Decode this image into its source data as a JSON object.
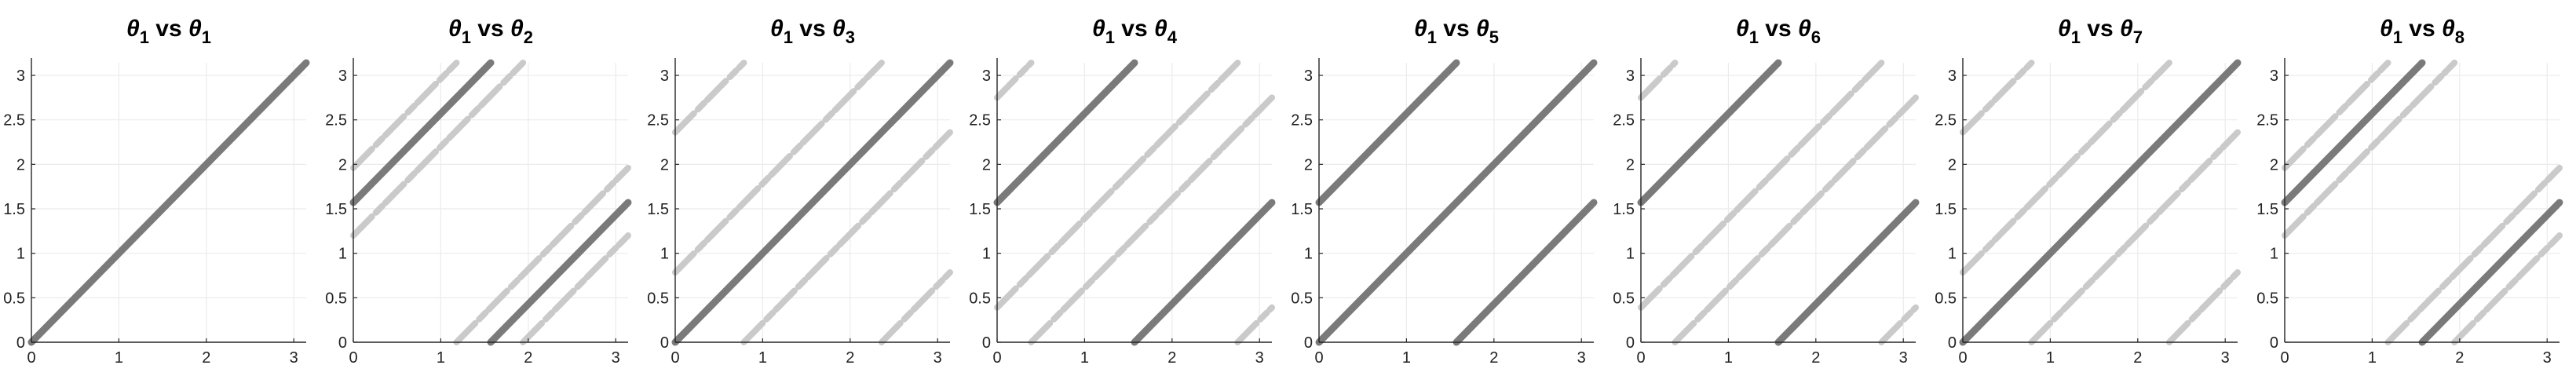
{
  "colors": {
    "strong": "#7a7a7a",
    "faint": "#c8c8c8",
    "axis": "#262626",
    "grid": "#ebebeb"
  },
  "chart_data": [
    {
      "type": "scatter",
      "title": {
        "base": "θ",
        "sub1": "1",
        "mid": " vs ",
        "sub2": "1"
      },
      "xlim": [
        0,
        3.1416
      ],
      "ylim": [
        0,
        3.1416
      ],
      "grid": true,
      "xticks": [
        "0",
        "1",
        "2",
        "3"
      ],
      "yticks": [
        "0",
        "0.5",
        "1",
        "1.5",
        "2",
        "2.5",
        "3"
      ],
      "series": [
        {
          "strength": "strong",
          "lines": [
            {
              "start": [
                0,
                0
              ],
              "end": [
                3.1416,
                3.1416
              ]
            }
          ]
        }
      ]
    },
    {
      "type": "scatter",
      "title": {
        "base": "θ",
        "sub1": "1",
        "mid": " vs ",
        "sub2": "2"
      },
      "xlim": [
        0,
        3.1416
      ],
      "ylim": [
        0,
        3.1416
      ],
      "grid": true,
      "xticks": [
        "0",
        "1",
        "2",
        "3"
      ],
      "yticks": [
        "0",
        "0.5",
        "1",
        "1.5",
        "2",
        "2.5",
        "3"
      ],
      "series": [
        {
          "strength": "strong",
          "lines": [
            {
              "start": [
                0,
                1.571
              ],
              "end": [
                1.571,
                3.1416
              ]
            },
            {
              "start": [
                1.571,
                0
              ],
              "end": [
                3.1416,
                1.571
              ]
            }
          ]
        },
        {
          "strength": "faint",
          "lines": [
            {
              "start": [
                0,
                1.96
              ],
              "end": [
                1.18,
                3.1416
              ]
            },
            {
              "start": [
                0,
                1.2
              ],
              "end": [
                1.94,
                3.1416
              ]
            },
            {
              "start": [
                1.18,
                0
              ],
              "end": [
                3.1416,
                1.96
              ]
            },
            {
              "start": [
                1.94,
                0
              ],
              "end": [
                3.1416,
                1.2
              ]
            }
          ]
        }
      ]
    },
    {
      "type": "scatter",
      "title": {
        "base": "θ",
        "sub1": "1",
        "mid": " vs ",
        "sub2": "3"
      },
      "xlim": [
        0,
        3.1416
      ],
      "ylim": [
        0,
        3.1416
      ],
      "grid": true,
      "xticks": [
        "0",
        "1",
        "2",
        "3"
      ],
      "yticks": [
        "0",
        "0.5",
        "1",
        "1.5",
        "2",
        "2.5",
        "3"
      ],
      "series": [
        {
          "strength": "strong",
          "lines": [
            {
              "start": [
                0,
                0
              ],
              "end": [
                3.1416,
                3.1416
              ]
            }
          ]
        },
        {
          "strength": "faint",
          "lines": [
            {
              "start": [
                0,
                2.36
              ],
              "end": [
                0.785,
                3.1416
              ]
            },
            {
              "start": [
                0,
                0.785
              ],
              "end": [
                2.36,
                3.1416
              ]
            },
            {
              "start": [
                0.785,
                0
              ],
              "end": [
                3.1416,
                2.36
              ]
            },
            {
              "start": [
                2.36,
                0
              ],
              "end": [
                3.1416,
                0.785
              ]
            }
          ]
        }
      ]
    },
    {
      "type": "scatter",
      "title": {
        "base": "θ",
        "sub1": "1",
        "mid": " vs ",
        "sub2": "4"
      },
      "xlim": [
        0,
        3.1416
      ],
      "ylim": [
        0,
        3.1416
      ],
      "grid": true,
      "xticks": [
        "0",
        "1",
        "2",
        "3"
      ],
      "yticks": [
        "0",
        "0.5",
        "1",
        "1.5",
        "2",
        "2.5",
        "3"
      ],
      "series": [
        {
          "strength": "strong",
          "lines": [
            {
              "start": [
                0,
                1.571
              ],
              "end": [
                1.571,
                3.1416
              ]
            },
            {
              "start": [
                1.571,
                0
              ],
              "end": [
                3.1416,
                1.571
              ]
            }
          ]
        },
        {
          "strength": "faint",
          "lines": [
            {
              "start": [
                0,
                2.75
              ],
              "end": [
                0.39,
                3.1416
              ]
            },
            {
              "start": [
                0,
                0.39
              ],
              "end": [
                2.75,
                3.1416
              ]
            },
            {
              "start": [
                0.39,
                0
              ],
              "end": [
                3.1416,
                2.75
              ]
            },
            {
              "start": [
                2.75,
                0
              ],
              "end": [
                3.1416,
                0.39
              ]
            }
          ]
        }
      ]
    },
    {
      "type": "scatter",
      "title": {
        "base": "θ",
        "sub1": "1",
        "mid": " vs ",
        "sub2": "5"
      },
      "xlim": [
        0,
        3.1416
      ],
      "ylim": [
        0,
        3.1416
      ],
      "grid": true,
      "xticks": [
        "0",
        "1",
        "2",
        "3"
      ],
      "yticks": [
        "0",
        "0.5",
        "1",
        "1.5",
        "2",
        "2.5",
        "3"
      ],
      "series": [
        {
          "strength": "strong",
          "lines": [
            {
              "start": [
                0,
                0
              ],
              "end": [
                3.1416,
                3.1416
              ]
            },
            {
              "start": [
                0,
                1.571
              ],
              "end": [
                1.571,
                3.1416
              ]
            },
            {
              "start": [
                1.571,
                0
              ],
              "end": [
                3.1416,
                1.571
              ]
            }
          ]
        }
      ]
    },
    {
      "type": "scatter",
      "title": {
        "base": "θ",
        "sub1": "1",
        "mid": " vs ",
        "sub2": "6"
      },
      "xlim": [
        0,
        3.1416
      ],
      "ylim": [
        0,
        3.1416
      ],
      "grid": true,
      "xticks": [
        "0",
        "1",
        "2",
        "3"
      ],
      "yticks": [
        "0",
        "0.5",
        "1",
        "1.5",
        "2",
        "2.5",
        "3"
      ],
      "series": [
        {
          "strength": "strong",
          "lines": [
            {
              "start": [
                0,
                1.571
              ],
              "end": [
                1.571,
                3.1416
              ]
            },
            {
              "start": [
                1.571,
                0
              ],
              "end": [
                3.1416,
                1.571
              ]
            }
          ]
        },
        {
          "strength": "faint",
          "lines": [
            {
              "start": [
                0,
                2.75
              ],
              "end": [
                0.39,
                3.1416
              ]
            },
            {
              "start": [
                0,
                0.39
              ],
              "end": [
                2.75,
                3.1416
              ]
            },
            {
              "start": [
                0.39,
                0
              ],
              "end": [
                3.1416,
                2.75
              ]
            },
            {
              "start": [
                2.75,
                0
              ],
              "end": [
                3.1416,
                0.39
              ]
            }
          ]
        }
      ]
    },
    {
      "type": "scatter",
      "title": {
        "base": "θ",
        "sub1": "1",
        "mid": " vs ",
        "sub2": "7"
      },
      "xlim": [
        0,
        3.1416
      ],
      "ylim": [
        0,
        3.1416
      ],
      "grid": true,
      "xticks": [
        "0",
        "1",
        "2",
        "3"
      ],
      "yticks": [
        "0",
        "0.5",
        "1",
        "1.5",
        "2",
        "2.5",
        "3"
      ],
      "series": [
        {
          "strength": "strong",
          "lines": [
            {
              "start": [
                0,
                0
              ],
              "end": [
                3.1416,
                3.1416
              ]
            }
          ]
        },
        {
          "strength": "faint",
          "lines": [
            {
              "start": [
                0,
                2.36
              ],
              "end": [
                0.785,
                3.1416
              ]
            },
            {
              "start": [
                0,
                0.785
              ],
              "end": [
                2.36,
                3.1416
              ]
            },
            {
              "start": [
                0.785,
                0
              ],
              "end": [
                3.1416,
                2.36
              ]
            },
            {
              "start": [
                2.36,
                0
              ],
              "end": [
                3.1416,
                0.785
              ]
            }
          ]
        }
      ]
    },
    {
      "type": "scatter",
      "title": {
        "base": "θ",
        "sub1": "1",
        "mid": " vs ",
        "sub2": "8"
      },
      "xlim": [
        0,
        3.1416
      ],
      "ylim": [
        0,
        3.1416
      ],
      "grid": true,
      "xticks": [
        "0",
        "1",
        "2",
        "3"
      ],
      "yticks": [
        "0",
        "0.5",
        "1",
        "1.5",
        "2",
        "2.5",
        "3"
      ],
      "series": [
        {
          "strength": "strong",
          "lines": [
            {
              "start": [
                0,
                1.571
              ],
              "end": [
                1.571,
                3.1416
              ]
            },
            {
              "start": [
                1.571,
                0
              ],
              "end": [
                3.1416,
                1.571
              ]
            }
          ]
        },
        {
          "strength": "faint",
          "lines": [
            {
              "start": [
                0,
                1.96
              ],
              "end": [
                1.18,
                3.1416
              ]
            },
            {
              "start": [
                0,
                1.2
              ],
              "end": [
                1.94,
                3.1416
              ]
            },
            {
              "start": [
                1.18,
                0
              ],
              "end": [
                3.1416,
                1.96
              ]
            },
            {
              "start": [
                1.94,
                0
              ],
              "end": [
                3.1416,
                1.2
              ]
            }
          ]
        }
      ]
    }
  ]
}
